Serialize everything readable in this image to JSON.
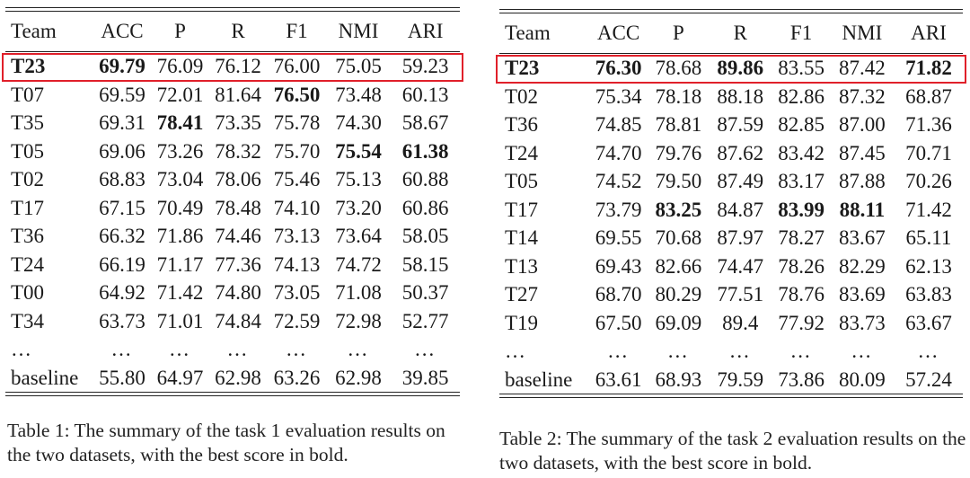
{
  "table1": {
    "columns": [
      "Team",
      "ACC",
      "P",
      "R",
      "F1",
      "NMI",
      "ARI"
    ],
    "highlight_row": 0,
    "rows": [
      {
        "team": "T23",
        "values": [
          "69.79",
          "76.09",
          "76.12",
          "76.00",
          "75.05",
          "59.23"
        ],
        "bold": [
          0,
          1
        ]
      },
      {
        "team": "T07",
        "values": [
          "69.59",
          "72.01",
          "81.64",
          "76.50",
          "73.48",
          "60.13"
        ],
        "bold": [
          4
        ]
      },
      {
        "team": "T35",
        "values": [
          "69.31",
          "78.41",
          "73.35",
          "75.78",
          "74.30",
          "58.67"
        ],
        "bold": [
          2
        ]
      },
      {
        "team": "T05",
        "values": [
          "69.06",
          "73.26",
          "78.32",
          "75.70",
          "75.54",
          "61.38"
        ],
        "bold": [
          5,
          6
        ]
      },
      {
        "team": "T02",
        "values": [
          "68.83",
          "73.04",
          "78.06",
          "75.46",
          "75.13",
          "60.88"
        ],
        "bold": []
      },
      {
        "team": "T17",
        "values": [
          "67.15",
          "70.49",
          "78.48",
          "74.10",
          "73.20",
          "60.86"
        ],
        "bold": []
      },
      {
        "team": "T36",
        "values": [
          "66.32",
          "71.86",
          "74.46",
          "73.13",
          "73.64",
          "58.05"
        ],
        "bold": []
      },
      {
        "team": "T24",
        "values": [
          "66.19",
          "71.17",
          "77.36",
          "74.13",
          "74.72",
          "58.15"
        ],
        "bold": []
      },
      {
        "team": "T00",
        "values": [
          "64.92",
          "71.42",
          "74.80",
          "73.05",
          "71.08",
          "50.37"
        ],
        "bold": []
      },
      {
        "team": "T34",
        "values": [
          "63.73",
          "71.01",
          "74.84",
          "72.59",
          "72.98",
          "52.77"
        ],
        "bold": []
      },
      {
        "team": "…",
        "values": [
          "…",
          "…",
          "…",
          "…",
          "…",
          "…"
        ],
        "bold": []
      },
      {
        "team": "baseline",
        "values": [
          "55.80",
          "64.97",
          "62.98",
          "63.26",
          "62.98",
          "39.85"
        ],
        "bold": []
      }
    ],
    "caption": "Table 1: The summary of the task 1 evaluation results on the two datasets, with the best score in bold."
  },
  "table2": {
    "columns": [
      "Team",
      "ACC",
      "P",
      "R",
      "F1",
      "NMI",
      "ARI"
    ],
    "highlight_row": 0,
    "rows": [
      {
        "team": "T23",
        "values": [
          "76.30",
          "78.68",
          "89.86",
          "83.55",
          "87.42",
          "71.82"
        ],
        "bold": [
          0,
          1,
          3,
          6
        ]
      },
      {
        "team": "T02",
        "values": [
          "75.34",
          "78.18",
          "88.18",
          "82.86",
          "87.32",
          "68.87"
        ],
        "bold": []
      },
      {
        "team": "T36",
        "values": [
          "74.85",
          "78.81",
          "87.59",
          "82.85",
          "87.00",
          "71.36"
        ],
        "bold": []
      },
      {
        "team": "T24",
        "values": [
          "74.70",
          "79.76",
          "87.62",
          "83.42",
          "87.45",
          "70.71"
        ],
        "bold": []
      },
      {
        "team": "T05",
        "values": [
          "74.52",
          "79.50",
          "87.49",
          "83.17",
          "87.88",
          "70.26"
        ],
        "bold": []
      },
      {
        "team": "T17",
        "values": [
          "73.79",
          "83.25",
          "84.87",
          "83.99",
          "88.11",
          "71.42"
        ],
        "bold": [
          2,
          4,
          5
        ]
      },
      {
        "team": "T14",
        "values": [
          "69.55",
          "70.68",
          "87.97",
          "78.27",
          "83.67",
          "65.11"
        ],
        "bold": []
      },
      {
        "team": "T13",
        "values": [
          "69.43",
          "82.66",
          "74.47",
          "78.26",
          "82.29",
          "62.13"
        ],
        "bold": []
      },
      {
        "team": "T27",
        "values": [
          "68.70",
          "80.29",
          "77.51",
          "78.76",
          "83.69",
          "63.83"
        ],
        "bold": []
      },
      {
        "team": "T19",
        "values": [
          "67.50",
          "69.09",
          "89.4",
          "77.92",
          "83.73",
          "63.67"
        ],
        "bold": []
      },
      {
        "team": "…",
        "values": [
          "…",
          "…",
          "…",
          "…",
          "…",
          "…"
        ],
        "bold": []
      },
      {
        "team": "baseline",
        "values": [
          "63.61",
          "68.93",
          "79.59",
          "73.86",
          "80.09",
          "57.24"
        ],
        "bold": []
      }
    ],
    "caption": "Table 2: The summary of the task 2 evaluation results on the two datasets, with the best score in bold."
  },
  "colors": {
    "highlight_border": "#e0202a",
    "text": "#1a1a1a"
  }
}
